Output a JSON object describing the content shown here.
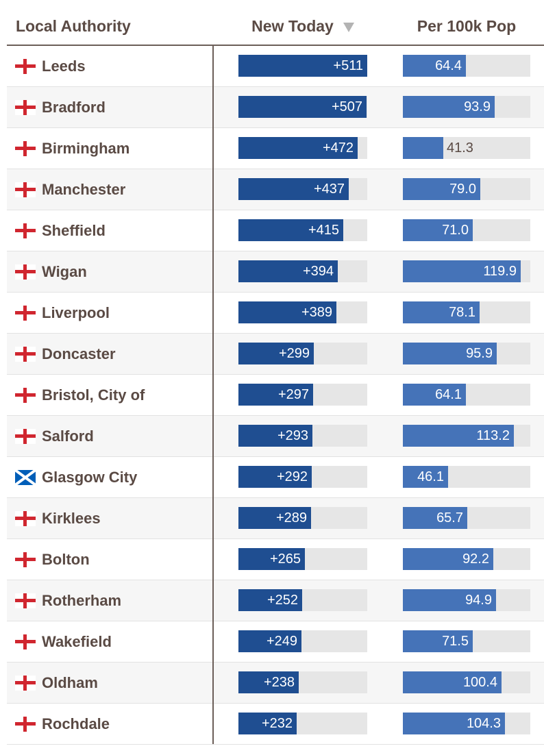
{
  "headers": {
    "local_authority": "Local Authority",
    "new_today": "New Today",
    "per_100k": "Per 100k Pop"
  },
  "scales": {
    "new_today_max": 511,
    "per_100k_max": 130
  },
  "rows": [
    {
      "name": "Leeds",
      "flag": "england-flag-icon",
      "new_today": 511,
      "new_today_label": "+511",
      "per_100k": 64.4,
      "per_100k_label": "64.4"
    },
    {
      "name": "Bradford",
      "flag": "england-flag-icon",
      "new_today": 507,
      "new_today_label": "+507",
      "per_100k": 93.9,
      "per_100k_label": "93.9"
    },
    {
      "name": "Birmingham",
      "flag": "england-flag-icon",
      "new_today": 472,
      "new_today_label": "+472",
      "per_100k": 41.3,
      "per_100k_label": "41.3"
    },
    {
      "name": "Manchester",
      "flag": "england-flag-icon",
      "new_today": 437,
      "new_today_label": "+437",
      "per_100k": 79.0,
      "per_100k_label": "79.0"
    },
    {
      "name": "Sheffield",
      "flag": "england-flag-icon",
      "new_today": 415,
      "new_today_label": "+415",
      "per_100k": 71.0,
      "per_100k_label": "71.0"
    },
    {
      "name": "Wigan",
      "flag": "england-flag-icon",
      "new_today": 394,
      "new_today_label": "+394",
      "per_100k": 119.9,
      "per_100k_label": "119.9"
    },
    {
      "name": "Liverpool",
      "flag": "england-flag-icon",
      "new_today": 389,
      "new_today_label": "+389",
      "per_100k": 78.1,
      "per_100k_label": "78.1"
    },
    {
      "name": "Doncaster",
      "flag": "england-flag-icon",
      "new_today": 299,
      "new_today_label": "+299",
      "per_100k": 95.9,
      "per_100k_label": "95.9"
    },
    {
      "name": "Bristol, City of",
      "flag": "england-flag-icon",
      "new_today": 297,
      "new_today_label": "+297",
      "per_100k": 64.1,
      "per_100k_label": "64.1"
    },
    {
      "name": "Salford",
      "flag": "england-flag-icon",
      "new_today": 293,
      "new_today_label": "+293",
      "per_100k": 113.2,
      "per_100k_label": "113.2"
    },
    {
      "name": "Glasgow City",
      "flag": "scotland-flag-icon",
      "new_today": 292,
      "new_today_label": "+292",
      "per_100k": 46.1,
      "per_100k_label": "46.1"
    },
    {
      "name": "Kirklees",
      "flag": "england-flag-icon",
      "new_today": 289,
      "new_today_label": "+289",
      "per_100k": 65.7,
      "per_100k_label": "65.7"
    },
    {
      "name": "Bolton",
      "flag": "england-flag-icon",
      "new_today": 265,
      "new_today_label": "+265",
      "per_100k": 92.2,
      "per_100k_label": "92.2"
    },
    {
      "name": "Rotherham",
      "flag": "england-flag-icon",
      "new_today": 252,
      "new_today_label": "+252",
      "per_100k": 94.9,
      "per_100k_label": "94.9"
    },
    {
      "name": "Wakefield",
      "flag": "england-flag-icon",
      "new_today": 249,
      "new_today_label": "+249",
      "per_100k": 71.5,
      "per_100k_label": "71.5"
    },
    {
      "name": "Oldham",
      "flag": "england-flag-icon",
      "new_today": 238,
      "new_today_label": "+238",
      "per_100k": 100.4,
      "per_100k_label": "100.4"
    },
    {
      "name": "Rochdale",
      "flag": "england-flag-icon",
      "new_today": 232,
      "new_today_label": "+232",
      "per_100k": 104.3,
      "per_100k_label": "104.3"
    }
  ],
  "colors": {
    "new_today_bar": "#1f4e91",
    "per_100k_bar": "#4573b8",
    "track": "#e6e6e6",
    "text": "#5a4a44",
    "england_cross": "#d0262f",
    "scotland_blue": "#005eb8"
  }
}
